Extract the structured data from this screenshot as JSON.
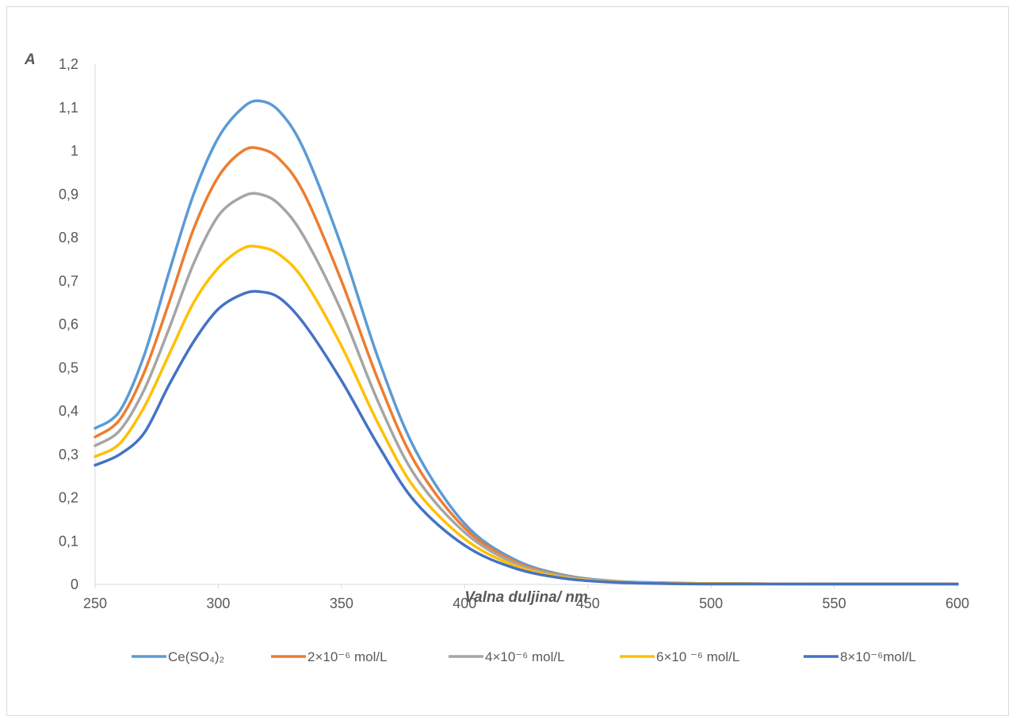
{
  "chart_data": {
    "type": "line",
    "title": "",
    "xlabel": "Valna duljina/ nm",
    "ylabel": "A",
    "xlim": [
      250,
      600
    ],
    "ylim": [
      0,
      1.2
    ],
    "x_ticks": [
      "250",
      "300",
      "350",
      "400",
      "450",
      "500",
      "550",
      "600"
    ],
    "y_ticks": [
      "0",
      "0,1",
      "0,2",
      "0,3",
      "0,4",
      "0,5",
      "0,6",
      "0,7",
      "0,8",
      "0,9",
      "1",
      "1,1",
      "1,2"
    ],
    "grid": false,
    "legend_position": "bottom",
    "colors": [
      "#5B9BD5",
      "#ED7D31",
      "#A5A5A5",
      "#FFC000",
      "#4472C4"
    ],
    "x": [
      250,
      260,
      270,
      280,
      290,
      300,
      310,
      317,
      325,
      335,
      350,
      365,
      380,
      400,
      420,
      440,
      460,
      480,
      500,
      550,
      600
    ],
    "series": [
      {
        "name": "Ce(SO₄)₂",
        "values": [
          0.36,
          0.4,
          0.53,
          0.72,
          0.9,
          1.03,
          1.1,
          1.115,
          1.09,
          1.0,
          0.78,
          0.52,
          0.31,
          0.14,
          0.058,
          0.022,
          0.008,
          0.004,
          0.002,
          0.001,
          0.001
        ]
      },
      {
        "name": "2×10⁻⁶  mol/L",
        "values": [
          0.34,
          0.38,
          0.49,
          0.65,
          0.82,
          0.94,
          1.0,
          1.005,
          0.98,
          0.9,
          0.7,
          0.47,
          0.28,
          0.13,
          0.054,
          0.02,
          0.007,
          0.003,
          0.002,
          0.001,
          0.001
        ]
      },
      {
        "name": "4×10⁻⁶ mol/L",
        "values": [
          0.32,
          0.355,
          0.45,
          0.59,
          0.74,
          0.85,
          0.895,
          0.9,
          0.875,
          0.8,
          0.63,
          0.42,
          0.25,
          0.12,
          0.05,
          0.019,
          0.007,
          0.003,
          0.002,
          0.001,
          0.001
        ]
      },
      {
        "name": "6×10 ⁻⁶ mol/L",
        "values": [
          0.295,
          0.325,
          0.41,
          0.53,
          0.65,
          0.73,
          0.775,
          0.778,
          0.76,
          0.7,
          0.55,
          0.37,
          0.22,
          0.105,
          0.044,
          0.016,
          0.006,
          0.003,
          0.002,
          0.001,
          0.001
        ]
      },
      {
        "name": "8×10⁻⁶mol/L",
        "values": [
          0.275,
          0.3,
          0.35,
          0.46,
          0.56,
          0.635,
          0.67,
          0.675,
          0.66,
          0.6,
          0.47,
          0.32,
          0.19,
          0.09,
          0.038,
          0.014,
          0.005,
          0.002,
          0.001,
          0.001,
          0.001
        ]
      }
    ]
  }
}
